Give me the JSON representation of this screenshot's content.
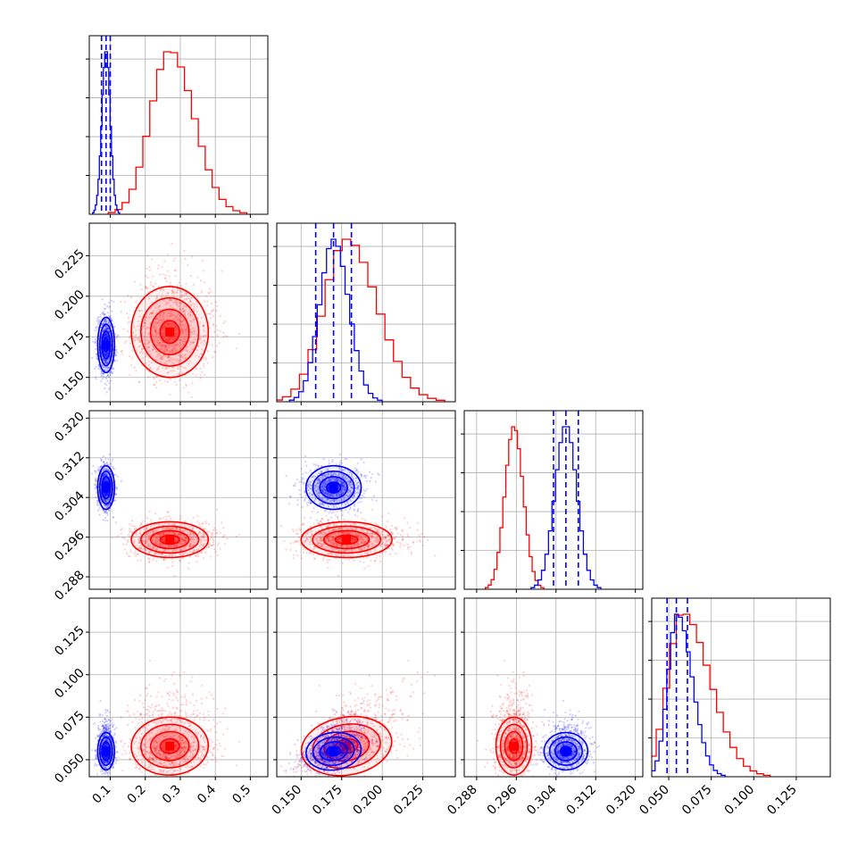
{
  "chart_data": {
    "type": "corner",
    "grid": true,
    "colors": {
      "set_a": "#ff0000",
      "set_b": "#0000ff"
    },
    "params": [
      {
        "range": [
          0.04,
          0.55
        ],
        "ticks": [
          0.1,
          0.2,
          0.3,
          0.4,
          0.5
        ],
        "tick_labels": [
          "0.1",
          "0.2",
          "0.3",
          "0.4",
          "0.5"
        ]
      },
      {
        "range": [
          0.135,
          0.245
        ],
        "ticks": [
          0.15,
          0.175,
          0.2,
          0.225
        ],
        "tick_labels": [
          "0.150",
          "0.175",
          "0.200",
          "0.225"
        ]
      },
      {
        "range": [
          0.2855,
          0.3215
        ],
        "ticks": [
          0.288,
          0.296,
          0.304,
          0.312,
          0.32
        ],
        "tick_labels": [
          "0.288",
          "0.296",
          "0.304",
          "0.312",
          "0.320"
        ]
      },
      {
        "range": [
          0.04,
          0.145
        ],
        "ticks": [
          0.05,
          0.075,
          0.1,
          0.125
        ],
        "tick_labels": [
          "0.050",
          "0.075",
          "0.100",
          "0.125"
        ]
      }
    ],
    "series": [
      {
        "color": "#ff0000",
        "mean": [
          0.27,
          0.178,
          0.2955,
          0.058
        ],
        "sd": [
          0.055,
          0.014,
          0.0018,
          0.0085
        ],
        "skew": [
          0.25,
          0.35,
          0.05,
          0.9
        ],
        "quantiles": null,
        "corr": {
          "1-0": 0.05,
          "2-0": 0.0,
          "3-0": 0.1,
          "2-1": 0.0,
          "3-1": 0.55,
          "3-2": 0.0
        }
      },
      {
        "color": "#0000ff",
        "mean": [
          0.088,
          0.17,
          0.306,
          0.055
        ],
        "sd": [
          0.012,
          0.0085,
          0.0022,
          0.0055
        ],
        "skew": [
          0,
          0.1,
          0,
          0.6
        ],
        "quantiles": [
          [
            0.075,
            0.088,
            0.1
          ],
          [
            0.159,
            0.17,
            0.181
          ],
          [
            0.3035,
            0.306,
            0.3085
          ],
          [
            0.049,
            0.0545,
            0.061
          ]
        ],
        "corr": {
          "1-0": 0.0,
          "2-0": 0.0,
          "3-0": 0.0,
          "2-1": 0.0,
          "3-1": 0.4,
          "3-2": 0.0
        }
      }
    ]
  }
}
